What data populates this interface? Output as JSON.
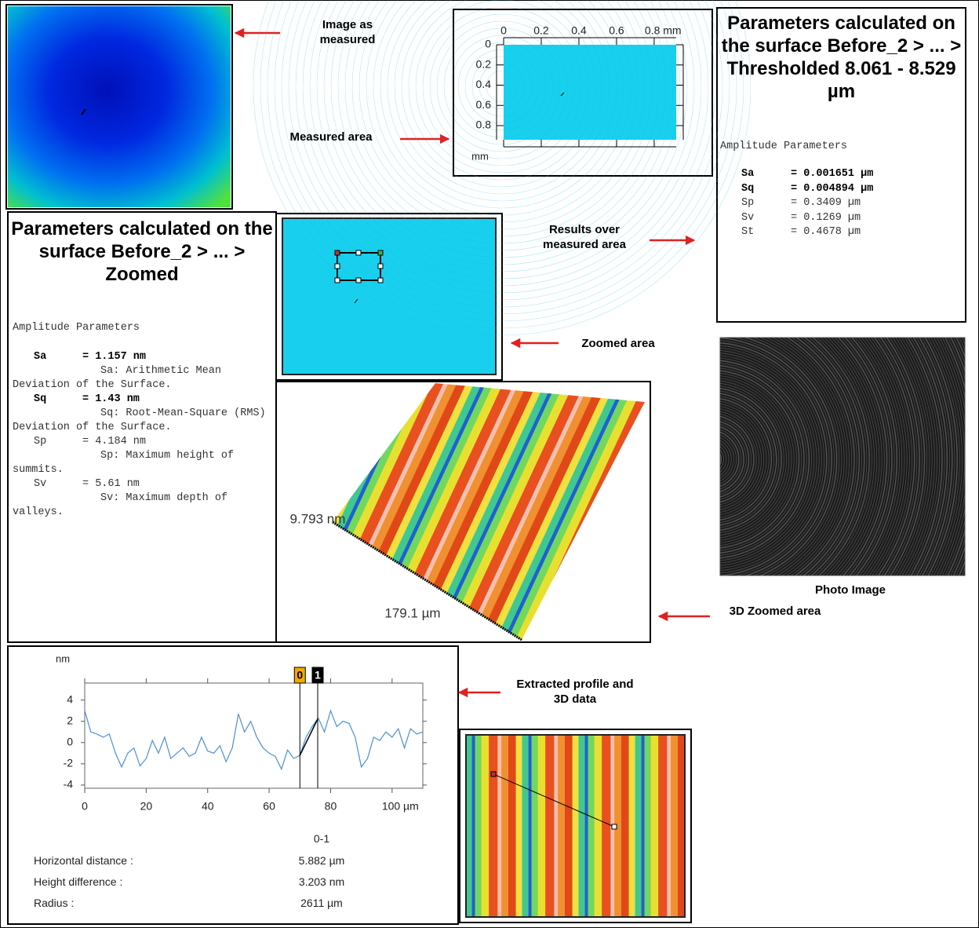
{
  "annotations": {
    "image_as_measured": "Image as measured",
    "measured_area": "Measured area",
    "results_over_measured_area": "Results over measured area",
    "zoomed_area": "Zoomed area",
    "zoomed_3d_area": "3D Zoomed area",
    "extracted_profile": "Extracted profile and 3D data",
    "photo_image": "Photo Image"
  },
  "measured_area_panel": {
    "xlim": [
      0,
      0.917
    ],
    "ylim": [
      0,
      0.94
    ],
    "xticks": [
      0,
      0.2,
      0.4,
      0.6,
      {
        "value": 0.8,
        "label": "0.8 mm"
      }
    ],
    "yticks": [
      0,
      0.2,
      0.4,
      0.6,
      0.8
    ],
    "y_unit": "mm"
  },
  "thresholded_parameters": {
    "title": "Parameters calculated on the surface Before_2 > ... > Thresholded 8.061 - 8.529 µm",
    "section": "Amplitude Parameters",
    "rows": [
      {
        "name": "Sa",
        "value": "= 0.001651 µm",
        "emphasis": true
      },
      {
        "name": "Sq",
        "value": "= 0.004894 µm",
        "emphasis": true
      },
      {
        "name": "Sp",
        "value": "= 0.3409 µm",
        "emphasis": false
      },
      {
        "name": "Sv",
        "value": "= 0.1269 µm",
        "emphasis": false
      },
      {
        "name": "St",
        "value": "= 0.4678 µm",
        "emphasis": false
      }
    ]
  },
  "zoomed_parameters": {
    "title": "Parameters calculated on the surface Before_2 > ... > Zoomed",
    "section": "Amplitude Parameters",
    "rows": [
      {
        "name": "Sa",
        "value": "= 1.157 nm",
        "description": "Sa: Arithmetic Mean Deviation of the Surface.",
        "emphasis": true
      },
      {
        "name": "Sq",
        "value": "= 1.43 nm",
        "description": "Sq: Root-Mean-Square (RMS) Deviation of the Surface.",
        "emphasis": true
      },
      {
        "name": "Sp",
        "value": "= 4.184 nm",
        "description": "Sp: Maximum height of summits.",
        "emphasis": false
      },
      {
        "name": "Sv",
        "value": "= 5.61 nm",
        "description": "Sv: Maximum depth of valleys.",
        "emphasis": false
      }
    ]
  },
  "zoomed_3d": {
    "height_label": "9.793 nm",
    "width_label": "179.1 µm"
  },
  "profile": {
    "y_unit": "nm",
    "xlim": [
      0,
      110
    ],
    "ylim": [
      -4.3,
      5.6
    ],
    "xticks": [
      0,
      20,
      40,
      60,
      80,
      {
        "value": 100,
        "label": "100 µm"
      }
    ],
    "yticks": [
      -4,
      -2,
      0,
      2,
      4
    ],
    "color": "#4a8fd8",
    "x": [
      0,
      2,
      4,
      6,
      8,
      10,
      12,
      14,
      16,
      18,
      20,
      22,
      24,
      26,
      28,
      30,
      32,
      34,
      36,
      38,
      40,
      42,
      44,
      46,
      48,
      50,
      52,
      54,
      56,
      58,
      60,
      62,
      64,
      66,
      68,
      70,
      72,
      74,
      76,
      78,
      80,
      82,
      84,
      86,
      88,
      90,
      92,
      94,
      96,
      98,
      100,
      102,
      104,
      106,
      108,
      110
    ],
    "values": [
      3,
      1,
      0.8,
      0.5,
      0.8,
      -1,
      -2.3,
      -1,
      -0.5,
      -2.2,
      -1.5,
      0.2,
      -1,
      0.5,
      -1.5,
      -1,
      -0.5,
      -1.3,
      -1,
      0.5,
      -0.8,
      -1,
      -0.3,
      -1.8,
      -0.5,
      2.7,
      1,
      2,
      0.5,
      -0.5,
      -1,
      -1.3,
      -2.5,
      -0.7,
      -1.5,
      -1.2,
      0.5,
      1.5,
      2.3,
      1,
      3,
      1.5,
      2,
      1.8,
      0.5,
      -2.3,
      -1.5,
      0.5,
      0.2,
      1,
      0.5,
      1.3,
      -0.5,
      1.3,
      0.8,
      1
    ],
    "cursors": [
      {
        "label": "0",
        "x": 70,
        "color": "#f5a800"
      },
      {
        "label": "1",
        "x": 75.8,
        "color": "#000000"
      }
    ]
  },
  "results": {
    "column": "0-1",
    "rows": [
      {
        "label": "Horizontal distance :",
        "value": "5.882 µm"
      },
      {
        "label": "Height difference :",
        "value": "3.203 nm"
      },
      {
        "label": "Radius :",
        "value": "2611 µm"
      }
    ]
  }
}
